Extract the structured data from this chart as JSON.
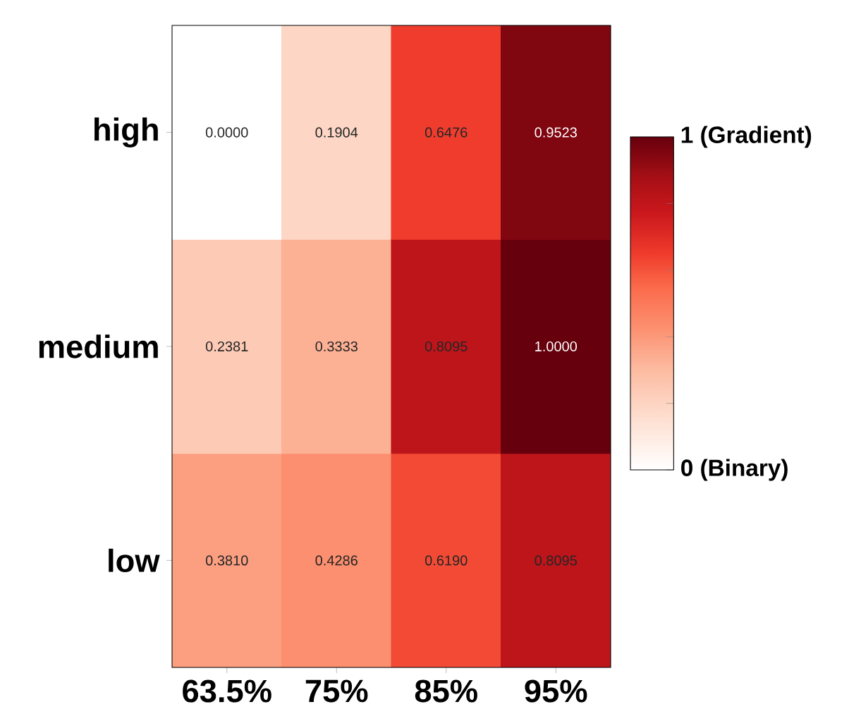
{
  "chart_data": {
    "type": "heatmap",
    "categories": [
      "63.5%",
      "75%",
      "85%",
      "95%"
    ],
    "y_categories": [
      "high",
      "medium",
      "low"
    ],
    "cells": [
      [
        0.0,
        0.1904,
        0.6476,
        0.9523
      ],
      [
        0.2381,
        0.3333,
        0.8095,
        1.0
      ],
      [
        0.381,
        0.4286,
        0.619,
        0.8095
      ]
    ],
    "cell_labels": [
      [
        "0.0000",
        "0.1904",
        "0.6476",
        "0.9523"
      ],
      [
        "0.2381",
        "0.3333",
        "0.8095",
        "1.0000"
      ],
      [
        "0.3810",
        "0.4286",
        "0.6190",
        "0.8095"
      ]
    ],
    "clim": [
      0,
      1
    ],
    "cticks": [
      {
        "value": 0,
        "label": "0 (Binary)"
      },
      {
        "value": 0.2,
        "label": null
      },
      {
        "value": 0.4,
        "label": null
      },
      {
        "value": 0.6,
        "label": null
      },
      {
        "value": 0.8,
        "label": null
      },
      {
        "value": 1,
        "label": "1 (Gradient)"
      }
    ]
  }
}
